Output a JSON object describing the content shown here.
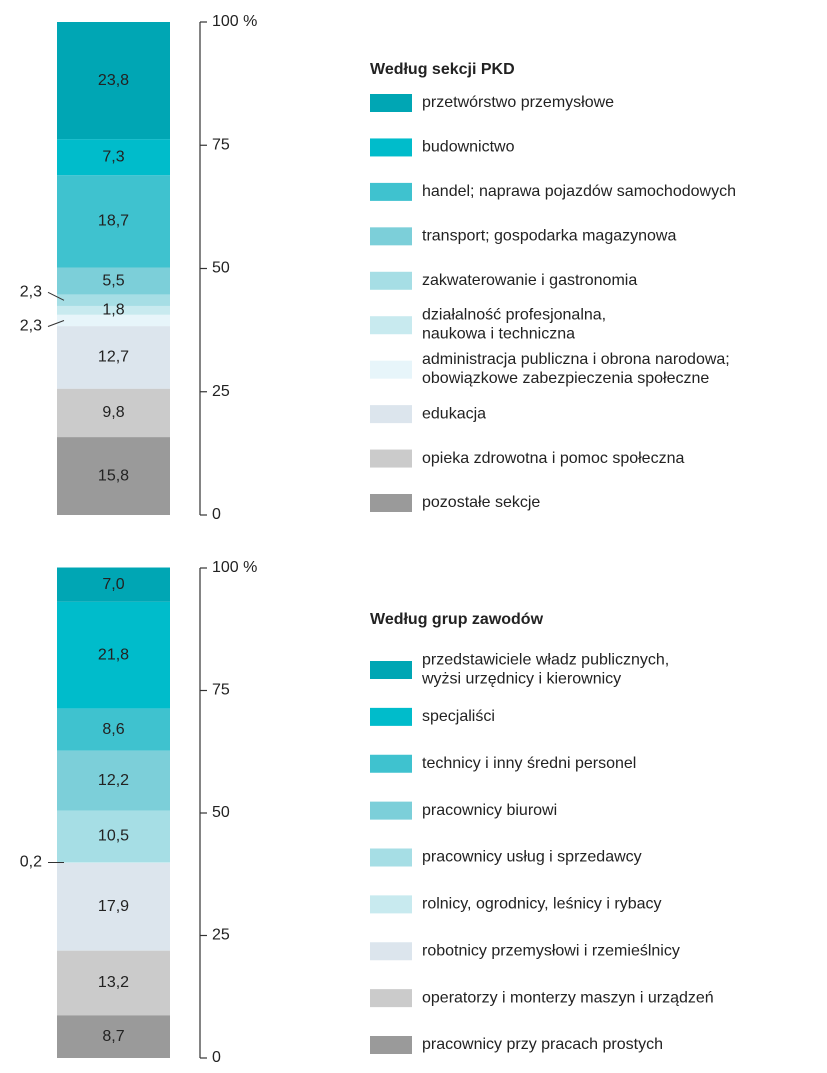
{
  "chart_data": [
    {
      "type": "bar",
      "title": "Według sekcji PKD",
      "ylim": [
        0,
        100
      ],
      "yticks": [
        0,
        25,
        50,
        75,
        {
          "value": 100,
          "label": "100 %"
        }
      ],
      "series": [
        {
          "name": "przetwórstwo przemysłowe",
          "color": "#00a6b4",
          "values": [
            23.8
          ],
          "value_labels": [
            "23,8"
          ]
        },
        {
          "name": "budownictwo",
          "color": "#00bccb",
          "values": [
            7.3
          ],
          "value_labels": [
            "7,3"
          ]
        },
        {
          "name": "handel; naprawa pojazdów samochodowych",
          "color": "#3fc2cf",
          "values": [
            18.7
          ],
          "value_labels": [
            "18,7"
          ]
        },
        {
          "name": "transport; gospodarka magazynowa",
          "color": "#7ccfd9",
          "values": [
            5.5
          ],
          "value_labels": [
            "5,5"
          ]
        },
        {
          "name": "zakwaterowanie i gastronomia",
          "color": "#a6dee5",
          "values": [
            2.3
          ],
          "value_labels": [
            "2,3"
          ]
        },
        {
          "name": "działalność profesjonalna,\nnaukowa i techniczna",
          "color": "#c8eaef",
          "values": [
            1.8
          ],
          "value_labels": [
            "1,8"
          ]
        },
        {
          "name": "administracja publiczna i obrona narodowa;\nobowiązkowe zabezpieczenia społeczne",
          "color": "#e7f5fa",
          "values": [
            2.3
          ],
          "value_labels": [
            "2,3"
          ]
        },
        {
          "name": "edukacja",
          "color": "#dce5ed",
          "values": [
            12.7
          ],
          "value_labels": [
            "12,7"
          ]
        },
        {
          "name": "opieka zdrowotna i pomoc społeczna",
          "color": "#cbcbcb",
          "values": [
            9.8
          ],
          "value_labels": [
            "9,8"
          ]
        },
        {
          "name": "pozostałe sekcje",
          "color": "#9a9a9a",
          "values": [
            15.8
          ],
          "value_labels": [
            "15,8"
          ]
        }
      ]
    },
    {
      "type": "bar",
      "title": "Według grup zawodów",
      "ylim": [
        0,
        100
      ],
      "yticks": [
        0,
        25,
        50,
        75,
        {
          "value": 100,
          "label": "100 %"
        }
      ],
      "series": [
        {
          "name": "przedstawiciele władz publicznych,\nwyżsi urzędnicy i kierownicy",
          "color": "#00a6b4",
          "values": [
            7.0
          ],
          "value_labels": [
            "7,0"
          ]
        },
        {
          "name": "specjaliści",
          "color": "#00bccb",
          "values": [
            21.8
          ],
          "value_labels": [
            "21,8"
          ]
        },
        {
          "name": "technicy i inny średni personel",
          "color": "#3fc2cf",
          "values": [
            8.6
          ],
          "value_labels": [
            "8,6"
          ]
        },
        {
          "name": "pracownicy biurowi",
          "color": "#7ccfd9",
          "values": [
            12.2
          ],
          "value_labels": [
            "12,2"
          ]
        },
        {
          "name": "pracownicy usług i sprzedawcy",
          "color": "#a6dee5",
          "values": [
            10.5
          ],
          "value_labels": [
            "10,5"
          ]
        },
        {
          "name": "rolnicy, ogrodnicy, leśnicy i rybacy",
          "color": "#c8eaef",
          "values": [
            0.2
          ],
          "value_labels": [
            "0,2"
          ]
        },
        {
          "name": "robotnicy przemysłowi i rzemieślnicy",
          "color": "#dce5ed",
          "values": [
            17.9
          ],
          "value_labels": [
            "17,9"
          ]
        },
        {
          "name": "operatorzy i monterzy maszyn i urządzeń",
          "color": "#cbcbcb",
          "values": [
            13.2
          ],
          "value_labels": [
            "13,2"
          ]
        },
        {
          "name": "pracownicy przy pracach prostych",
          "color": "#9a9a9a",
          "values": [
            8.7
          ],
          "value_labels": [
            "8,7"
          ]
        }
      ]
    }
  ]
}
